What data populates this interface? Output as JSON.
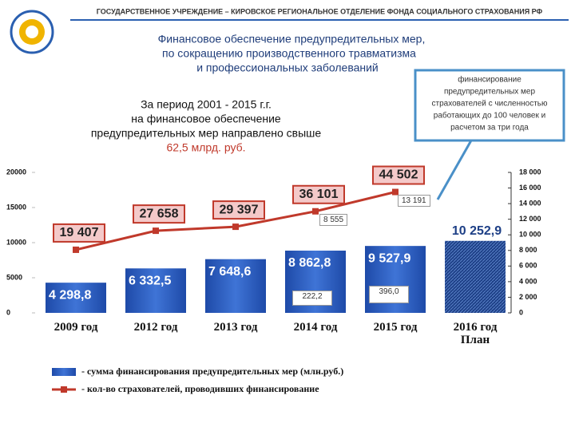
{
  "header": {
    "org": "ГОСУДАРСТВЕННОЕ УЧРЕЖДЕНИЕ – КИРОВСКОЕ РЕГИОНАЛЬНОЕ ОТДЕЛЕНИЕ ФОНДА СОЦИАЛЬНОГО СТРАХОВАНИЯ РФ",
    "title": [
      "Финансовое обеспечение предупредительных мер,",
      "по сокращению производственного травматизма",
      "и профессиональных заболеваний"
    ]
  },
  "period_text": [
    "За период 2001 - 2015 г.г.",
    "на финансовое обеспечение",
    "предупредительных мер  направлено свыше"
  ],
  "period_total": "62,5 млрд. руб.",
  "callout": [
    "финансирование",
    "предупредительных мер",
    "страхователей с численностью",
    "работающих до 100 человек и",
    "расчетом за три года"
  ],
  "annotations": [
    "8 555",
    "13 191",
    "222,2",
    "396,0"
  ],
  "chart_data": {
    "type": "bar-line",
    "categories": [
      "2009 год",
      "2012 год",
      "2013 год",
      "2014 год",
      "2015 год",
      "2016 год План"
    ],
    "series": [
      {
        "name": "- сумма финансирования предупредительных мер (млн.руб.)",
        "type": "bar",
        "color": "#2f5fbf",
        "values": [
          4298.8,
          6332.5,
          7648.6,
          8862.8,
          9527.9,
          10252.9
        ],
        "value_labels": [
          "4 298,8",
          "6 332,5",
          "7 648,6",
          "8 862,8",
          "9 527,9",
          "10 252,9"
        ]
      },
      {
        "name": "- кол-во страхователей, проводивших финансирование",
        "type": "line",
        "color": "#c0392b",
        "axis": "y3",
        "values": [
          19407,
          27658,
          29397,
          36101,
          44502,
          null
        ],
        "value_labels": [
          "19 407",
          "27 658",
          "29 397",
          "36 101",
          "44 502",
          null
        ]
      }
    ],
    "ylim": [
      0,
      20000
    ],
    "yticks": [
      0,
      5000,
      10000,
      15000,
      20000
    ],
    "y2lim": [
      0,
      18000
    ],
    "y2ticks": [
      {
        "value": 0,
        "label": "0"
      },
      {
        "value": 2000,
        "label": "2 000"
      },
      {
        "value": 4000,
        "label": "4 000"
      },
      {
        "value": 6000,
        "label": "6 000"
      },
      {
        "value": 8000,
        "label": "8 000"
      },
      {
        "value": 10000,
        "label": "10 000"
      },
      {
        "value": 12000,
        "label": "12 000"
      },
      {
        "value": 14000,
        "label": "14 000"
      },
      {
        "value": 16000,
        "label": "16 000"
      },
      {
        "value": 18000,
        "label": "18 000"
      }
    ],
    "y3lim": [
      -8000,
      53000
    ]
  }
}
